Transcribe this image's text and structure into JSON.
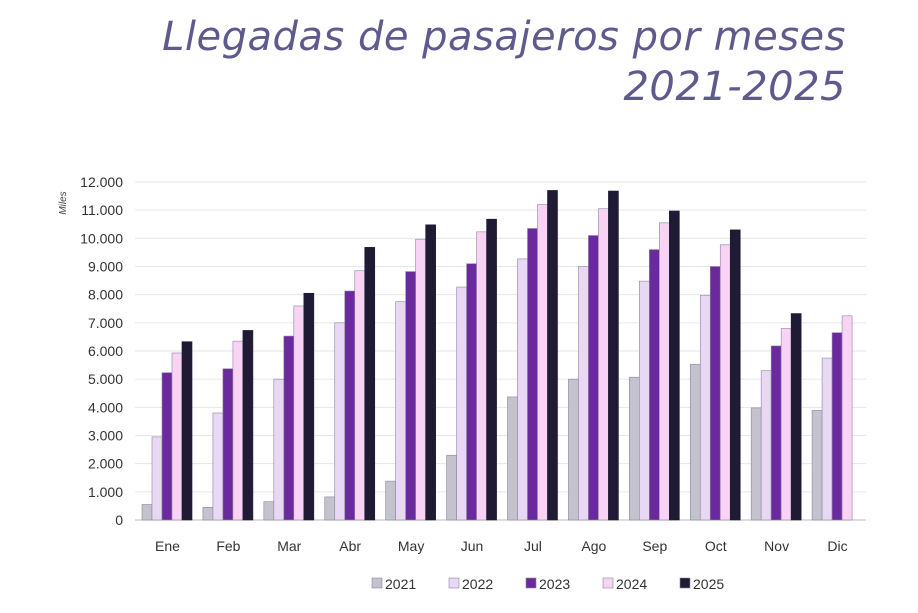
{
  "chart_data": {
    "type": "bar",
    "title": "Llegadas de pasajeros por meses",
    "subtitle": "2021-2025",
    "ylabel": "Miles",
    "xlabel": "",
    "ylim": [
      0,
      12000
    ],
    "yticks": [
      "0",
      "1.000",
      "2.000",
      "3.000",
      "4.000",
      "5.000",
      "6.000",
      "7.000",
      "8.000",
      "9.000",
      "10.000",
      "11.000",
      "12.000"
    ],
    "grid": true,
    "legend": "bottom",
    "categories": [
      "Ene",
      "Feb",
      "Mar",
      "Abr",
      "May",
      "Jun",
      "Jul",
      "Ago",
      "Sep",
      "Oct",
      "Nov",
      "Dic"
    ],
    "series": [
      {
        "name": "2021",
        "color": "#c4c2cc",
        "values": [
          550,
          450,
          650,
          820,
          1380,
          2300,
          4370,
          5000,
          5070,
          5530,
          3980,
          3890
        ]
      },
      {
        "name": "2022",
        "color": "#e9d8f4",
        "values": [
          2950,
          3800,
          5000,
          7000,
          7750,
          8270,
          9270,
          9000,
          8480,
          7980,
          5300,
          5750
        ]
      },
      {
        "name": "2023",
        "color": "#6a2a9e",
        "values": [
          5230,
          5370,
          6530,
          8130,
          8820,
          9100,
          10350,
          10100,
          9600,
          9000,
          6180,
          6650
        ]
      },
      {
        "name": "2024",
        "color": "#f9d3f3",
        "values": [
          5930,
          6350,
          7600,
          8850,
          9970,
          10230,
          11200,
          11050,
          10550,
          9770,
          6800,
          7250
        ]
      },
      {
        "name": "2025",
        "color": "#1f1b35",
        "values": [
          6330,
          6730,
          8050,
          9680,
          10480,
          10680,
          11700,
          11680,
          10970,
          10300,
          7330,
          null
        ]
      }
    ]
  }
}
